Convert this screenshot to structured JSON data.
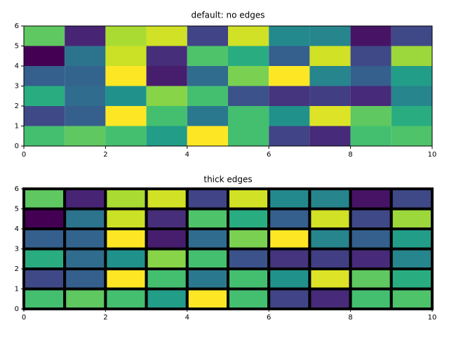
{
  "chart_data": [
    {
      "type": "heatmap",
      "title": "default: no edges",
      "colormap": "viridis",
      "edges": false,
      "xlim": [
        0,
        10
      ],
      "ylim": [
        0,
        6
      ],
      "xticks": [
        0,
        2,
        4,
        6,
        8,
        10
      ],
      "yticks": [
        0,
        1,
        2,
        3,
        4,
        5,
        6
      ],
      "values": [
        [
          0.7,
          0.75,
          0.7,
          0.55,
          1.0,
          0.7,
          0.2,
          0.12,
          0.7,
          0.72
        ],
        [
          0.22,
          0.3,
          1.0,
          0.7,
          0.4,
          0.7,
          0.5,
          0.95,
          0.75,
          0.62
        ],
        [
          0.62,
          0.35,
          0.5,
          0.82,
          0.7,
          0.25,
          0.15,
          0.18,
          0.12,
          0.45
        ],
        [
          0.3,
          0.32,
          1.0,
          0.08,
          0.35,
          0.8,
          1.0,
          0.45,
          0.3,
          0.55
        ],
        [
          0.0,
          0.38,
          0.92,
          0.13,
          0.72,
          0.62,
          0.3,
          0.93,
          0.22,
          0.85
        ],
        [
          0.75,
          0.1,
          0.87,
          0.93,
          0.2,
          0.93,
          0.47,
          0.45,
          0.05,
          0.22
        ]
      ]
    },
    {
      "type": "heatmap",
      "title": "thick edges",
      "colormap": "viridis",
      "edges": true,
      "xlim": [
        0,
        10
      ],
      "ylim": [
        0,
        6
      ],
      "xticks": [
        0,
        2,
        4,
        6,
        8,
        10
      ],
      "yticks": [
        0,
        1,
        2,
        3,
        4,
        5,
        6
      ],
      "values": [
        [
          0.7,
          0.75,
          0.7,
          0.55,
          1.0,
          0.7,
          0.2,
          0.12,
          0.7,
          0.72
        ],
        [
          0.22,
          0.3,
          1.0,
          0.7,
          0.4,
          0.7,
          0.5,
          0.95,
          0.75,
          0.62
        ],
        [
          0.62,
          0.35,
          0.5,
          0.82,
          0.7,
          0.25,
          0.15,
          0.18,
          0.12,
          0.45
        ],
        [
          0.3,
          0.32,
          1.0,
          0.08,
          0.35,
          0.8,
          1.0,
          0.45,
          0.3,
          0.55
        ],
        [
          0.0,
          0.38,
          0.92,
          0.13,
          0.72,
          0.62,
          0.3,
          0.93,
          0.22,
          0.85
        ],
        [
          0.75,
          0.1,
          0.87,
          0.93,
          0.2,
          0.93,
          0.47,
          0.45,
          0.05,
          0.22
        ]
      ]
    }
  ]
}
